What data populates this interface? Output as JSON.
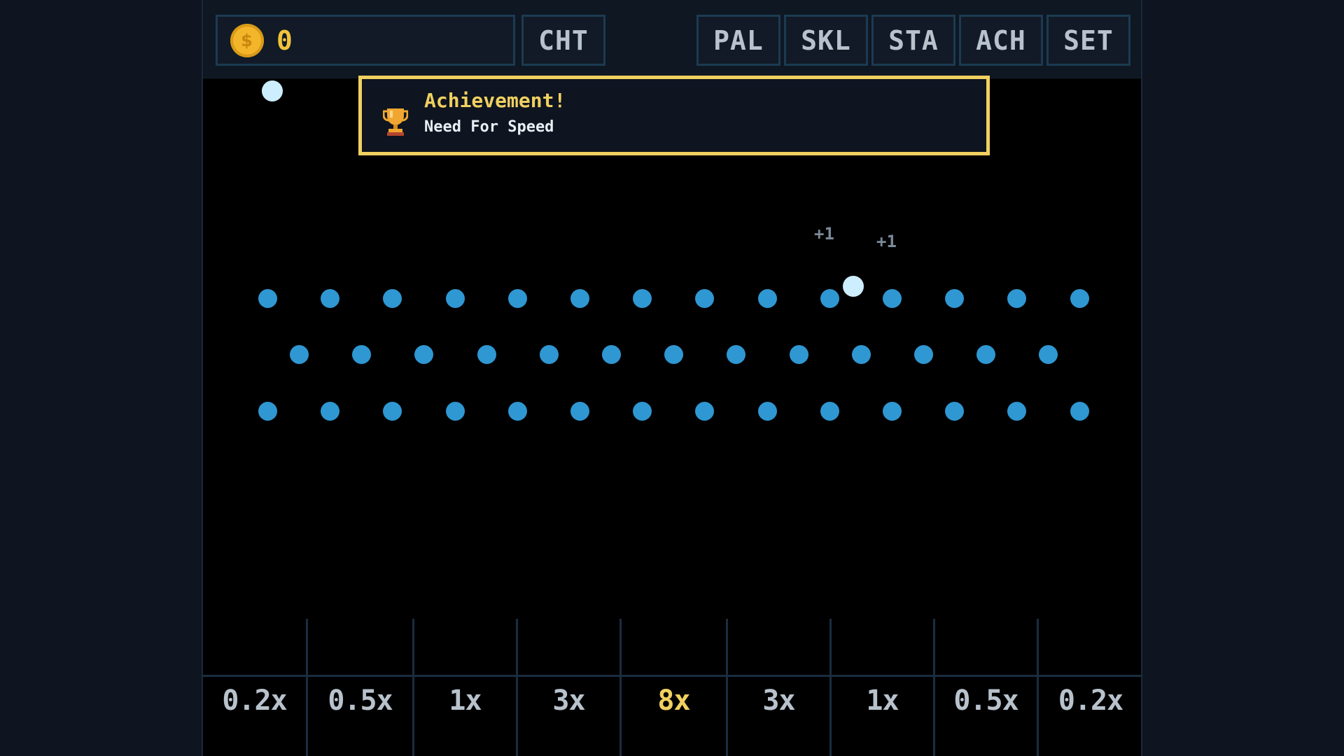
{
  "coins": {
    "icon": "coin-icon",
    "icon_glyph": "$",
    "value": "0"
  },
  "toolbar": {
    "cheat": "CHT",
    "palette": "PAL",
    "skills": "SKL",
    "stats": "STA",
    "achievements": "ACH",
    "settings": "SET"
  },
  "toast": {
    "icon": "trophy-icon",
    "title": "Achievement!",
    "name": "Need For Speed"
  },
  "floating_text": [
    "+1",
    "+1"
  ],
  "buckets": [
    {
      "label": "0.2x",
      "highlight": false
    },
    {
      "label": "0.5x",
      "highlight": false
    },
    {
      "label": "1x",
      "highlight": false
    },
    {
      "label": "3x",
      "highlight": false
    },
    {
      "label": "8x",
      "highlight": true
    },
    {
      "label": "3x",
      "highlight": false
    },
    {
      "label": "1x",
      "highlight": false
    },
    {
      "label": "0.5x",
      "highlight": false
    },
    {
      "label": "0.2x",
      "highlight": false
    }
  ],
  "colors": {
    "peg": "#2f97d2",
    "ball": "#cdeeff",
    "accent": "#f0d060",
    "coin": "#f3b52a"
  }
}
